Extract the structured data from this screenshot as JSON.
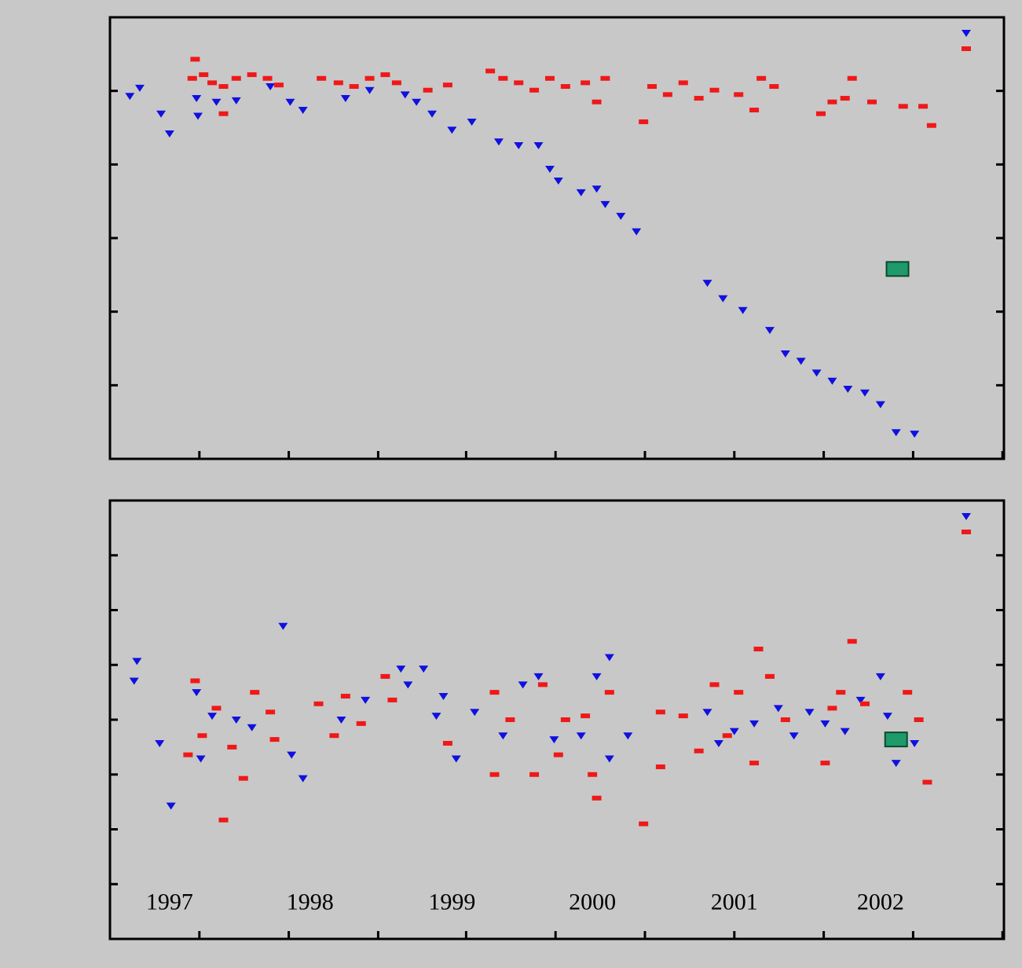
{
  "chart_data": [
    {
      "type": "scatter",
      "xlim": [
        1996.6,
        2002.9
      ],
      "xticks": [
        1996.6,
        1997.23,
        1997.86,
        1998.49,
        1999.11,
        1999.74,
        2000.37,
        2001.0,
        2001.63,
        2002.26,
        2002.89
      ],
      "ylim": [
        -6,
        0
      ],
      "yticks": [
        -6,
        -5,
        -4,
        -3,
        -2,
        -1,
        0
      ],
      "legend": "upper right",
      "series": [
        {
          "color": "#1010e0",
          "marker": "triangle",
          "legend": true,
          "x": [
            1996.74,
            1996.81,
            1996.96,
            1997.02,
            1997.21,
            1997.22,
            1997.35,
            1997.49,
            1997.73,
            1997.87,
            1997.96,
            1998.26,
            1998.43,
            1998.68,
            1998.76,
            1998.87,
            1999.01,
            1999.15,
            1999.34,
            1999.48,
            1999.62,
            1999.7,
            1999.76,
            1999.92,
            2000.03,
            2000.09,
            2000.2,
            2000.31,
            2000.81,
            2000.92,
            2001.06,
            2001.25,
            2001.36,
            2001.47,
            2001.58,
            2001.69,
            2001.8,
            2001.92,
            2002.03,
            2002.14,
            2002.27
          ],
          "y": [
            -1.07,
            -0.96,
            -1.31,
            -1.58,
            -1.1,
            -1.34,
            -1.15,
            -1.13,
            -0.94,
            -1.15,
            -1.26,
            -1.1,
            -0.99,
            -1.05,
            -1.15,
            -1.31,
            -1.53,
            -1.42,
            -1.69,
            -1.74,
            -1.74,
            -2.06,
            -2.22,
            -2.38,
            -2.33,
            -2.54,
            -2.7,
            -2.91,
            -3.61,
            -3.82,
            -3.98,
            -4.25,
            -4.57,
            -4.67,
            -4.83,
            -4.94,
            -5.05,
            -5.1,
            -5.26,
            -5.64,
            -5.66
          ]
        },
        {
          "color": "#f01818",
          "marker": "dash",
          "legend": true,
          "x": [
            1997.2,
            1997.18,
            1997.26,
            1997.32,
            1997.4,
            1997.49,
            1997.6,
            1997.71,
            1997.79,
            1997.4,
            1998.09,
            1998.21,
            1998.32,
            1998.43,
            1998.54,
            1998.62,
            1998.84,
            1998.98,
            1999.28,
            1999.37,
            1999.48,
            1999.59,
            1999.7,
            1999.81,
            1999.95,
            2000.09,
            2000.03,
            2000.36,
            2000.42,
            2000.53,
            2000.64,
            2000.75,
            2000.86,
            2001.03,
            2001.14,
            2001.19,
            2001.28,
            2001.61,
            2001.69,
            2001.78,
            2001.83,
            2001.97,
            2002.19,
            2002.33,
            2002.39
          ],
          "y": [
            -0.57,
            -0.83,
            -0.78,
            -0.89,
            -0.94,
            -0.83,
            -0.78,
            -0.83,
            -0.92,
            -1.31,
            -0.83,
            -0.89,
            -0.94,
            -0.83,
            -0.78,
            -0.89,
            -0.99,
            -0.92,
            -0.73,
            -0.83,
            -0.89,
            -0.99,
            -0.83,
            -0.94,
            -0.89,
            -0.83,
            -1.15,
            -1.42,
            -0.94,
            -1.05,
            -0.89,
            -1.1,
            -0.99,
            -1.05,
            -1.26,
            -0.83,
            -0.94,
            -1.31,
            -1.15,
            -1.1,
            -0.83,
            -1.15,
            -1.21,
            -1.21,
            -1.47
          ]
        },
        {
          "color": "#1f9a6a",
          "marker": "square",
          "legend": false,
          "x": [
            2002.15
          ],
          "y": [
            -3.42
          ]
        }
      ]
    },
    {
      "type": "scatter",
      "xlim": [
        1996.6,
        2002.9
      ],
      "xticks": [
        1996.6,
        1997.23,
        1997.86,
        1998.49,
        1999.11,
        1999.74,
        2000.37,
        2001.0,
        2001.63,
        2002.26,
        2002.89
      ],
      "ylim": [
        -4,
        4
      ],
      "yticks": [
        -4,
        -3,
        -2,
        -1,
        0,
        1,
        2,
        3,
        4
      ],
      "legend": "upper right",
      "annotations": [
        {
          "text": "1997",
          "x": 1997.02,
          "y": -3.36
        },
        {
          "text": "1998",
          "x": 1998.01,
          "y": -3.36
        },
        {
          "text": "1999",
          "x": 1999.01,
          "y": -3.36
        },
        {
          "text": "2000",
          "x": 2000.0,
          "y": -3.36
        },
        {
          "text": "2001",
          "x": 2001.0,
          "y": -3.36
        },
        {
          "text": "2002",
          "x": 2002.03,
          "y": -3.36
        }
      ],
      "series": [
        {
          "color": "#1010e0",
          "marker": "triangle",
          "legend": true,
          "x": [
            1996.79,
            1996.77,
            1996.95,
            1997.03,
            1997.21,
            1997.24,
            1997.32,
            1997.49,
            1997.6,
            1997.82,
            1997.88,
            1997.96,
            1998.23,
            1998.4,
            1998.65,
            1998.7,
            1998.81,
            1998.9,
            1998.95,
            1999.04,
            1999.17,
            1999.37,
            1999.51,
            1999.62,
            1999.73,
            1999.92,
            2000.03,
            2000.12,
            2000.12,
            2000.25,
            2000.81,
            2000.89,
            2001.0,
            2001.14,
            2001.31,
            2001.42,
            2001.53,
            2001.64,
            2001.78,
            2001.89,
            2002.03,
            2002.08,
            2002.14,
            2002.27
          ],
          "y": [
            1.07,
            0.71,
            -0.43,
            -1.57,
            0.5,
            -0.71,
            0.07,
            0,
            -0.14,
            1.71,
            -0.64,
            -1.07,
            0,
            0.36,
            0.93,
            0.64,
            0.93,
            0.07,
            0.43,
            -0.71,
            0.14,
            -0.29,
            0.64,
            0.79,
            -0.36,
            -0.29,
            0.79,
            1.14,
            -0.71,
            -0.29,
            0.14,
            -0.43,
            -0.21,
            -0.07,
            0.21,
            -0.29,
            0.14,
            -0.07,
            -0.21,
            0.36,
            0.79,
            0.07,
            -0.79,
            -0.43
          ]
        },
        {
          "color": "#f01818",
          "marker": "dash",
          "legend": true,
          "x": [
            1997.2,
            1997.15,
            1997.25,
            1997.4,
            1997.35,
            1997.46,
            1997.54,
            1997.62,
            1997.73,
            1997.76,
            1998.07,
            1998.18,
            1998.26,
            1998.37,
            1998.54,
            1998.59,
            1998.98,
            1999.31,
            1999.31,
            1999.42,
            1999.59,
            1999.65,
            1999.76,
            1999.81,
            1999.95,
            2000.0,
            2000.03,
            2000.12,
            2000.36,
            2000.48,
            2000.48,
            2000.64,
            2000.75,
            2000.86,
            2000.95,
            2001.03,
            2001.14,
            2001.17,
            2001.25,
            2001.36,
            2001.64,
            2001.69,
            2001.75,
            2001.83,
            2001.92,
            2002.22,
            2002.3,
            2002.36
          ],
          "y": [
            0.71,
            -0.64,
            -0.29,
            -1.83,
            0.21,
            -0.5,
            -1.07,
            0.5,
            0.14,
            -0.36,
            0.29,
            -0.29,
            0.43,
            -0.07,
            0.79,
            0.36,
            -0.43,
            0.5,
            -1.0,
            0,
            -1.0,
            0.64,
            -0.64,
            0,
            0.07,
            -1.0,
            -1.43,
            0.5,
            -1.9,
            0.14,
            -0.86,
            0.07,
            -0.57,
            0.64,
            -0.29,
            0.5,
            -0.79,
            1.29,
            0.79,
            0,
            -0.79,
            0.21,
            0.5,
            1.43,
            0.29,
            0.5,
            0,
            -1.14
          ]
        },
        {
          "color": "#1f9a6a",
          "marker": "square",
          "legend": false,
          "x": [
            2002.14
          ],
          "y": [
            -0.36
          ]
        }
      ]
    }
  ]
}
